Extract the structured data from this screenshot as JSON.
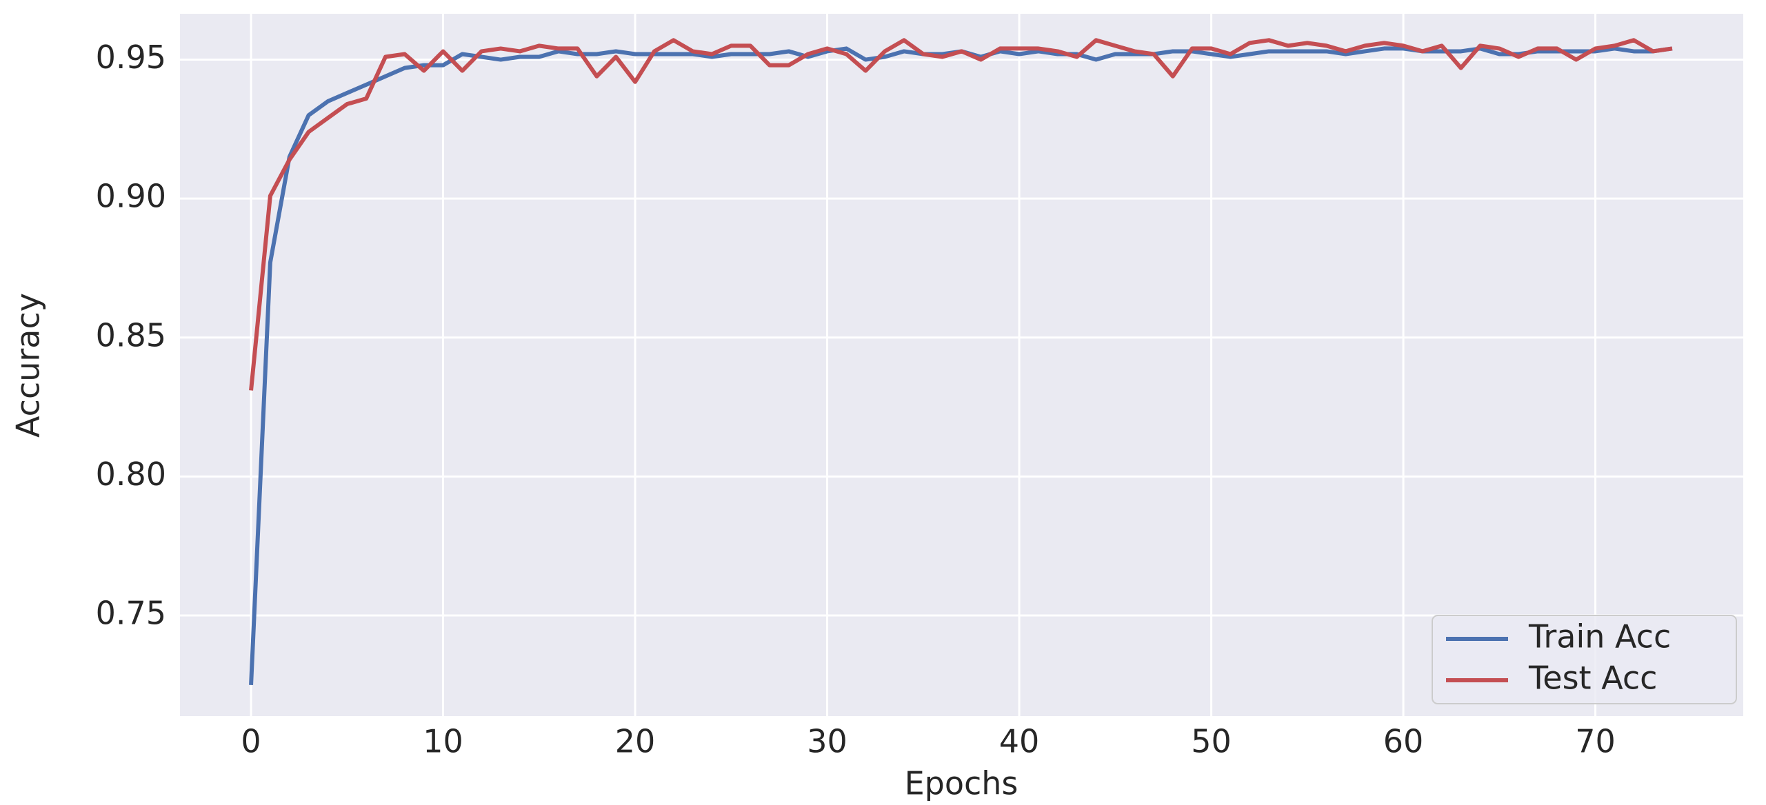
{
  "chart_data": {
    "type": "line",
    "xlabel": "Epochs",
    "ylabel": "Accuracy",
    "x": [
      0,
      1,
      2,
      3,
      4,
      5,
      6,
      7,
      8,
      9,
      10,
      11,
      12,
      13,
      14,
      15,
      16,
      17,
      18,
      19,
      20,
      21,
      22,
      23,
      24,
      25,
      26,
      27,
      28,
      29,
      30,
      31,
      32,
      33,
      34,
      35,
      36,
      37,
      38,
      39,
      40,
      41,
      42,
      43,
      44,
      45,
      46,
      47,
      48,
      49,
      50,
      51,
      52,
      53,
      54,
      55,
      56,
      57,
      58,
      59,
      60,
      61,
      62,
      63,
      64,
      65,
      66,
      67,
      68,
      69,
      70,
      71,
      72,
      73,
      74
    ],
    "series": [
      {
        "name": "Train Acc",
        "color": "#4c72b0",
        "values": [
          0.725,
          0.877,
          0.915,
          0.93,
          0.935,
          0.938,
          0.941,
          0.944,
          0.947,
          0.948,
          0.948,
          0.952,
          0.951,
          0.95,
          0.951,
          0.951,
          0.953,
          0.952,
          0.952,
          0.953,
          0.952,
          0.952,
          0.952,
          0.952,
          0.951,
          0.952,
          0.952,
          0.952,
          0.953,
          0.951,
          0.953,
          0.954,
          0.95,
          0.951,
          0.953,
          0.952,
          0.952,
          0.953,
          0.951,
          0.953,
          0.952,
          0.953,
          0.952,
          0.952,
          0.95,
          0.952,
          0.952,
          0.952,
          0.953,
          0.953,
          0.952,
          0.951,
          0.952,
          0.953,
          0.953,
          0.953,
          0.953,
          0.952,
          0.953,
          0.954,
          0.954,
          0.953,
          0.953,
          0.953,
          0.954,
          0.952,
          0.952,
          0.953,
          0.953,
          0.953,
          0.953,
          0.954,
          0.953,
          0.953,
          0.954
        ]
      },
      {
        "name": "Test Acc",
        "color": "#c44e52",
        "values": [
          0.831,
          0.901,
          0.914,
          0.924,
          0.929,
          0.934,
          0.936,
          0.951,
          0.952,
          0.946,
          0.953,
          0.946,
          0.953,
          0.954,
          0.953,
          0.955,
          0.954,
          0.954,
          0.944,
          0.951,
          0.942,
          0.953,
          0.957,
          0.953,
          0.952,
          0.955,
          0.955,
          0.948,
          0.948,
          0.952,
          0.954,
          0.952,
          0.946,
          0.953,
          0.957,
          0.952,
          0.951,
          0.953,
          0.95,
          0.954,
          0.954,
          0.954,
          0.953,
          0.951,
          0.957,
          0.955,
          0.953,
          0.952,
          0.944,
          0.954,
          0.954,
          0.952,
          0.956,
          0.957,
          0.955,
          0.956,
          0.955,
          0.953,
          0.955,
          0.956,
          0.955,
          0.953,
          0.955,
          0.947,
          0.955,
          0.954,
          0.951,
          0.954,
          0.954,
          0.95,
          0.954,
          0.955,
          0.957,
          0.953,
          0.954
        ]
      }
    ],
    "xlim": [
      -3.7,
      77.7
    ],
    "ylim": [
      0.7138,
      0.9665
    ],
    "xticks": [
      0,
      10,
      20,
      30,
      40,
      50,
      60,
      70
    ],
    "yticks": [
      {
        "value": 0.75,
        "label": "0.75"
      },
      {
        "value": 0.8,
        "label": "0.80"
      },
      {
        "value": 0.85,
        "label": "0.85"
      },
      {
        "value": 0.9,
        "label": "0.90"
      },
      {
        "value": 0.95,
        "label": "0.95"
      }
    ],
    "grid": true,
    "legend": "lower right"
  }
}
